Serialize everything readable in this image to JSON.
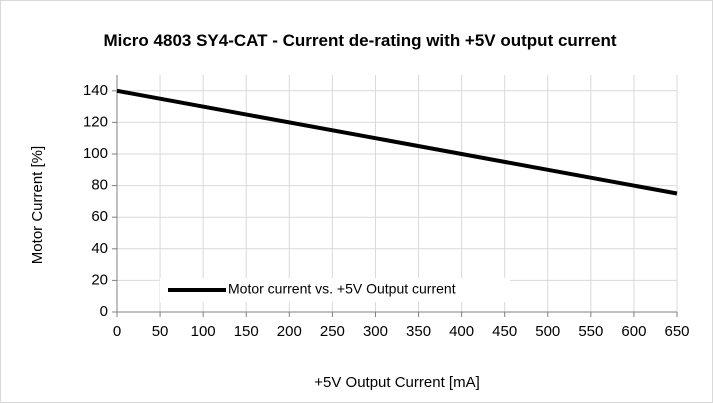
{
  "chart_data": {
    "type": "line",
    "title": "Micro 4803 SY4-CAT - Current de-rating with +5V output current",
    "x_label": "+5V Output Current [mA]",
    "y_label": "Motor Current  [%]",
    "x": [
      0,
      650
    ],
    "series": [
      {
        "name": "Motor current vs. +5V Output current",
        "color": "#000000",
        "values": [
          140,
          75
        ]
      }
    ],
    "xlim": [
      0,
      650
    ],
    "xticks": [
      0,
      50,
      100,
      150,
      200,
      250,
      300,
      350,
      400,
      450,
      500,
      550,
      600,
      650
    ],
    "ylim": [
      0,
      150
    ],
    "yticks": [
      0,
      20,
      40,
      60,
      80,
      100,
      120,
      140
    ],
    "grid": true,
    "legend": "lower left"
  }
}
